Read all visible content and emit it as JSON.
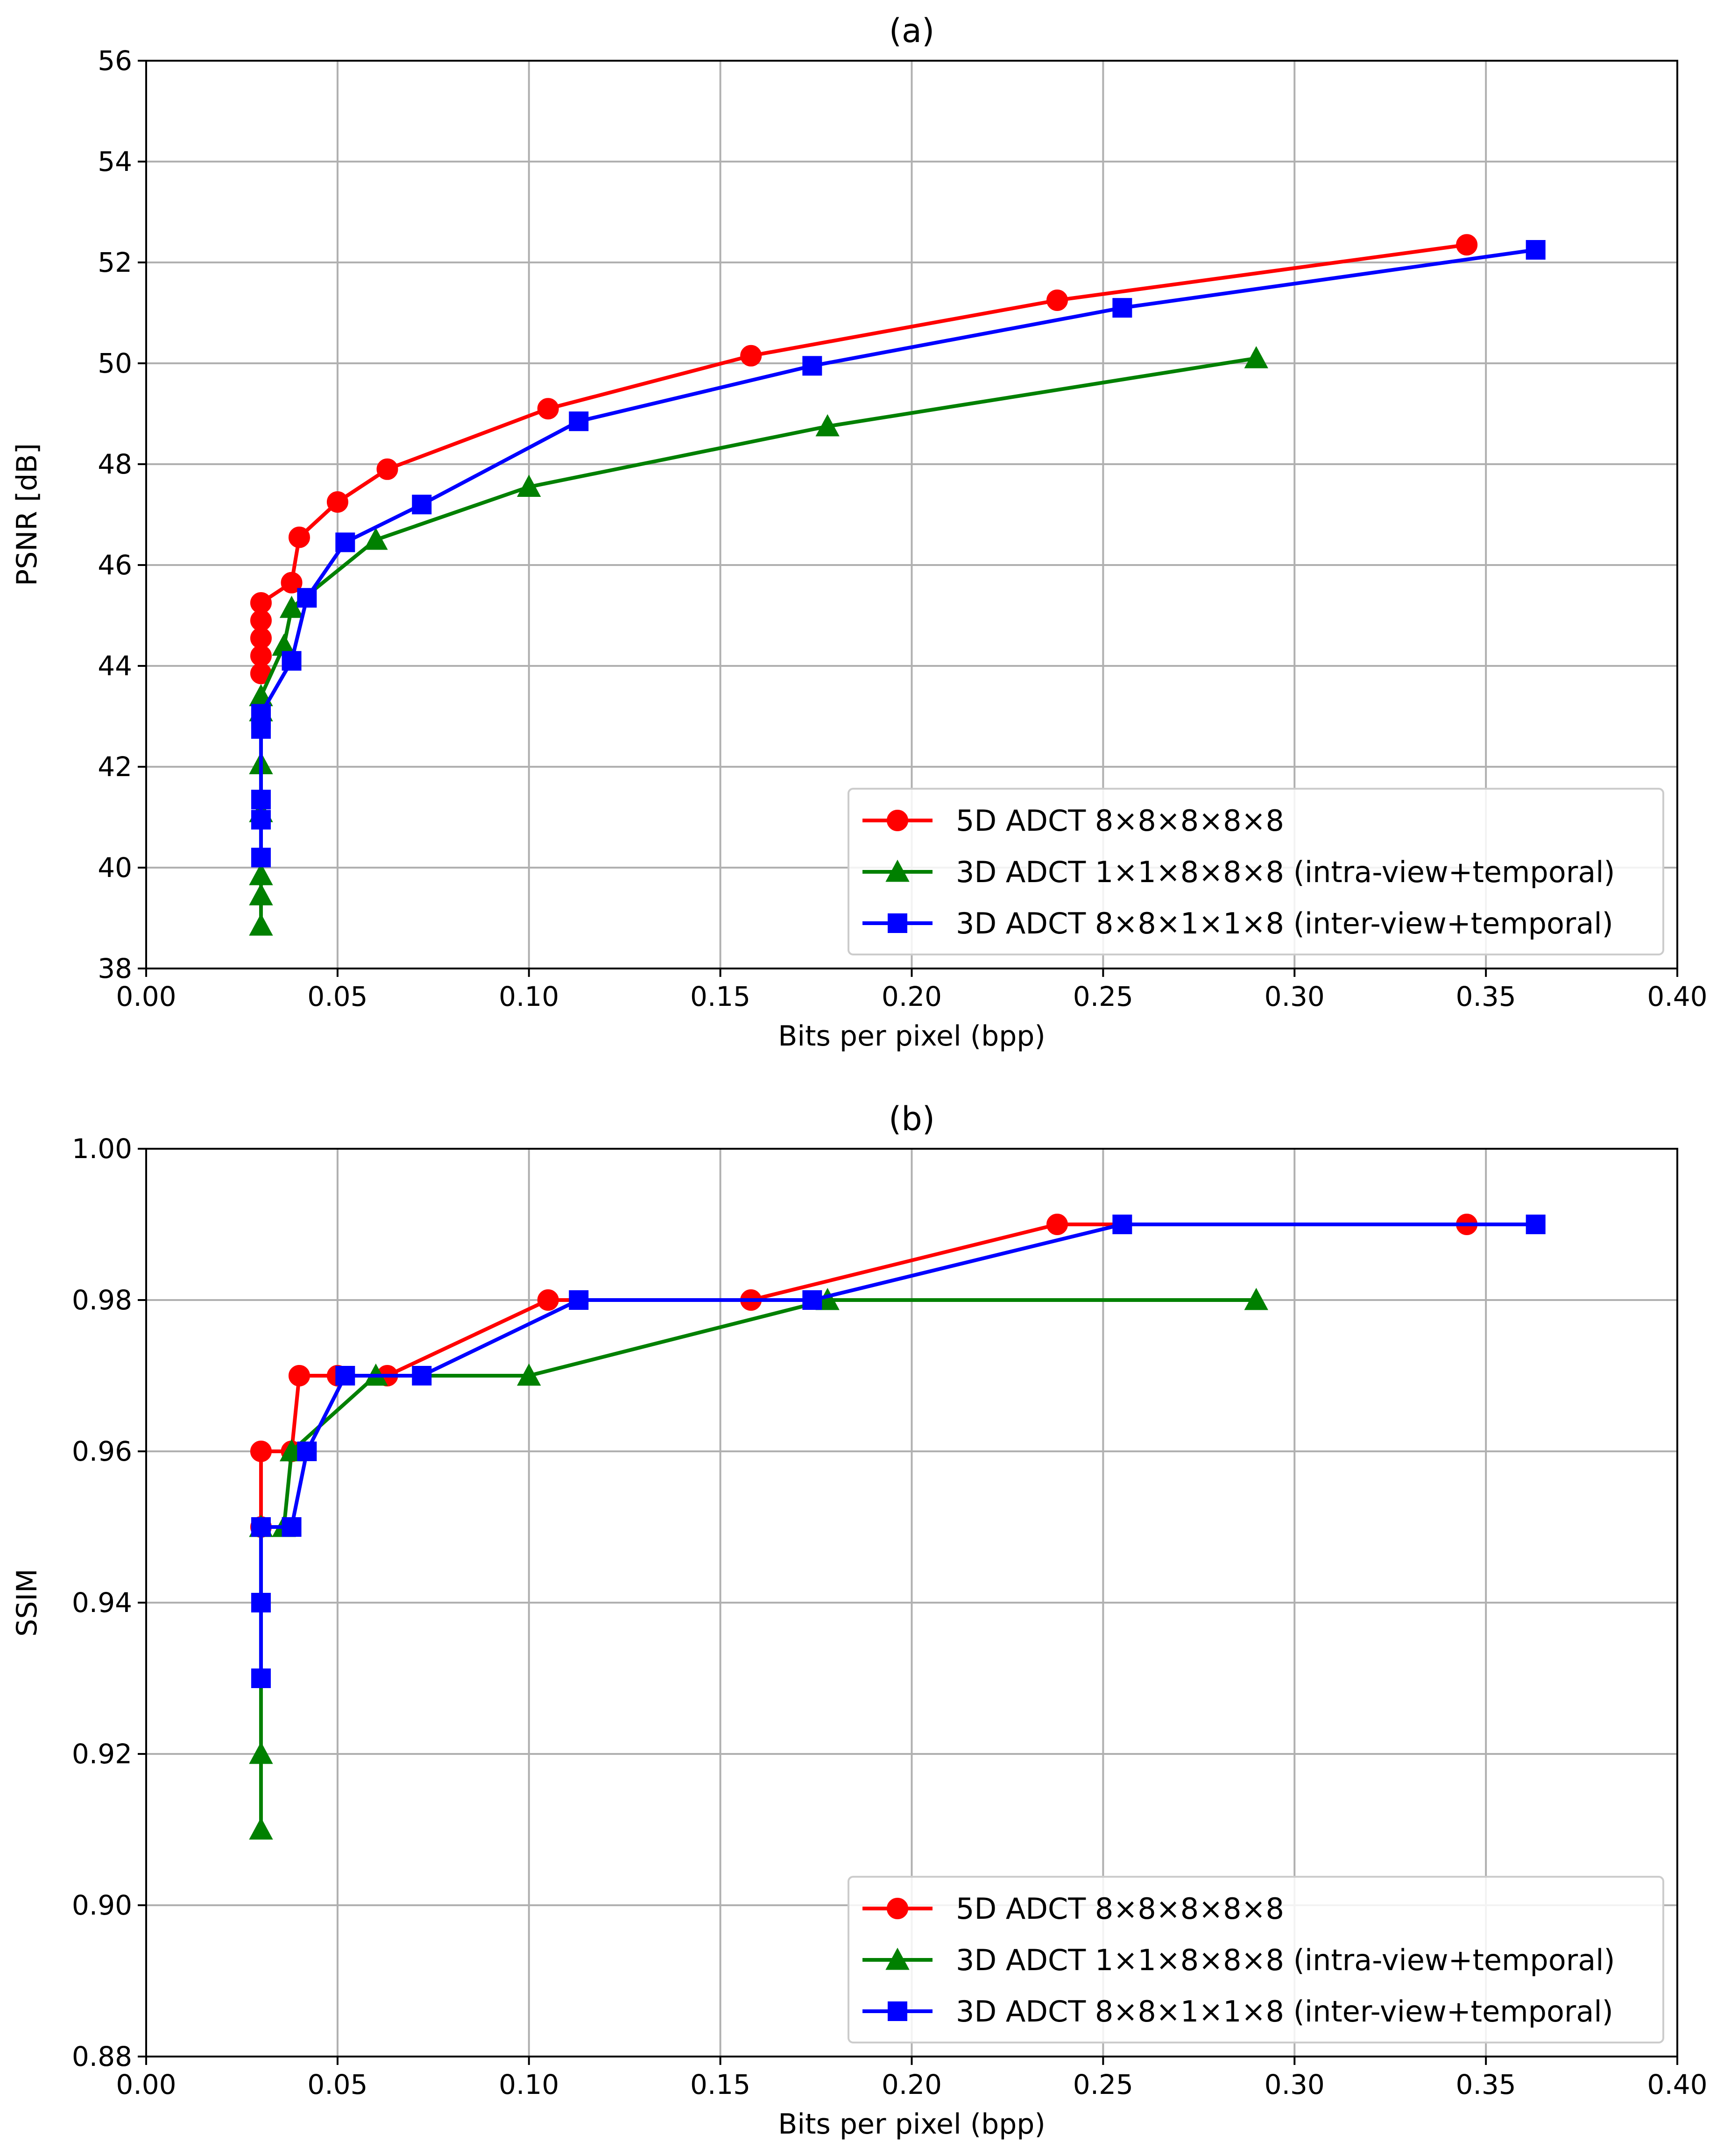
{
  "chart_data": [
    {
      "type": "line",
      "title": "(a)",
      "xlabel": "Bits per pixel (bpp)",
      "ylabel": "PSNR [dB]",
      "xlim": [
        0.0,
        0.4
      ],
      "ylim": [
        38,
        56
      ],
      "xticks": [
        0.0,
        0.05,
        0.1,
        0.15,
        0.2,
        0.25,
        0.3,
        0.35,
        0.4
      ],
      "xtick_labels": [
        "0.00",
        "0.05",
        "0.10",
        "0.15",
        "0.20",
        "0.25",
        "0.30",
        "0.35",
        "0.40"
      ],
      "yticks": [
        38,
        40,
        42,
        44,
        46,
        48,
        50,
        52,
        54,
        56
      ],
      "ytick_labels": [
        "38",
        "40",
        "42",
        "44",
        "46",
        "48",
        "50",
        "52",
        "54",
        "56"
      ],
      "grid": true,
      "legend_position": "lower-right",
      "series": [
        {
          "name": "5D ADCT 8×8×8×8×8",
          "color": "#ff0000",
          "marker": "circle",
          "x": [
            0.03,
            0.03,
            0.03,
            0.03,
            0.03,
            0.038,
            0.04,
            0.05,
            0.063,
            0.105,
            0.158,
            0.238,
            0.345
          ],
          "y": [
            43.85,
            44.2,
            44.55,
            44.9,
            45.25,
            45.65,
            46.55,
            47.25,
            47.9,
            49.1,
            50.15,
            51.25,
            52.35
          ]
        },
        {
          "name": "3D ADCT 1×1×8×8×8 (intra-view+temporal)",
          "color": "#008000",
          "marker": "triangle",
          "x": [
            0.03,
            0.03,
            0.03,
            0.03,
            0.03,
            0.03,
            0.03,
            0.036,
            0.038,
            0.06,
            0.1,
            0.178,
            0.29
          ],
          "y": [
            38.85,
            39.45,
            39.85,
            41.1,
            42.05,
            43.1,
            43.4,
            44.4,
            45.15,
            46.5,
            47.55,
            48.75,
            50.1
          ]
        },
        {
          "name": "3D ADCT 8×8×1×1×8 (inter-view+temporal)",
          "color": "#0000ff",
          "marker": "square",
          "x": [
            0.03,
            0.03,
            0.03,
            0.03,
            0.03,
            0.03,
            0.038,
            0.042,
            0.052,
            0.072,
            0.113,
            0.174,
            0.255,
            0.363
          ],
          "y": [
            40.2,
            40.95,
            41.35,
            42.75,
            42.95,
            43.05,
            44.1,
            45.35,
            46.45,
            47.2,
            48.85,
            49.95,
            51.1,
            52.25
          ]
        }
      ]
    },
    {
      "type": "line",
      "title": "(b)",
      "xlabel": "Bits per pixel (bpp)",
      "ylabel": "SSIM",
      "xlim": [
        0.0,
        0.4
      ],
      "ylim": [
        0.88,
        1.0
      ],
      "xticks": [
        0.0,
        0.05,
        0.1,
        0.15,
        0.2,
        0.25,
        0.3,
        0.35,
        0.4
      ],
      "xtick_labels": [
        "0.00",
        "0.05",
        "0.10",
        "0.15",
        "0.20",
        "0.25",
        "0.30",
        "0.35",
        "0.40"
      ],
      "yticks": [
        0.88,
        0.9,
        0.92,
        0.94,
        0.96,
        0.98,
        1.0
      ],
      "ytick_labels": [
        "0.88",
        "0.90",
        "0.92",
        "0.94",
        "0.96",
        "0.98",
        "1.00"
      ],
      "grid": true,
      "legend_position": "lower-right",
      "series": [
        {
          "name": "5D ADCT 8×8×8×8×8",
          "color": "#ff0000",
          "marker": "circle",
          "x": [
            0.03,
            0.03,
            0.038,
            0.04,
            0.05,
            0.063,
            0.105,
            0.158,
            0.238,
            0.345
          ],
          "y": [
            0.95,
            0.96,
            0.96,
            0.97,
            0.97,
            0.97,
            0.98,
            0.98,
            0.99,
            0.99
          ]
        },
        {
          "name": "3D ADCT 1×1×8×8×8 (intra-view+temporal)",
          "color": "#008000",
          "marker": "triangle",
          "x": [
            0.03,
            0.03,
            0.03,
            0.036,
            0.038,
            0.06,
            0.1,
            0.178,
            0.29
          ],
          "y": [
            0.91,
            0.92,
            0.95,
            0.95,
            0.96,
            0.97,
            0.97,
            0.98,
            0.98
          ]
        },
        {
          "name": "3D ADCT 8×8×1×1×8 (inter-view+temporal)",
          "color": "#0000ff",
          "marker": "square",
          "x": [
            0.03,
            0.03,
            0.03,
            0.038,
            0.042,
            0.052,
            0.072,
            0.113,
            0.174,
            0.255,
            0.363
          ],
          "y": [
            0.93,
            0.94,
            0.95,
            0.95,
            0.96,
            0.97,
            0.97,
            0.98,
            0.98,
            0.99,
            0.99
          ]
        }
      ]
    }
  ]
}
